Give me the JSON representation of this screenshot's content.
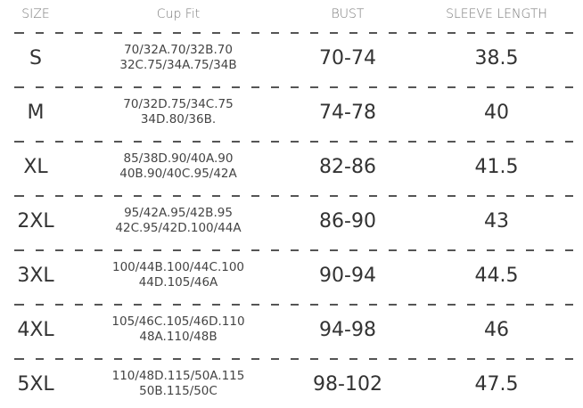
{
  "headers": [
    "SIZE",
    "Cup Fit",
    "BUST",
    "SLEEVE LENGTH"
  ],
  "rows": [
    {
      "size": "S",
      "cup": [
        "70/32A.70/32B.70",
        "32C.75/34A.75/34B"
      ],
      "bust": "70-74",
      "sleeve": "38.5"
    },
    {
      "size": "M",
      "cup": [
        "70/32D.75/34C.75",
        "34D.80/36B."
      ],
      "bust": "74-78",
      "sleeve": "40"
    },
    {
      "size": "XL",
      "cup": [
        "85/38D.90/40A.90",
        "40B.90/40C.95/42A"
      ],
      "bust": "82-86",
      "sleeve": "41.5"
    },
    {
      "size": "2XL",
      "cup": [
        "95/42A.95/42B.95",
        "42C.95/42D.100/44A"
      ],
      "bust": "86-90",
      "sleeve": "43"
    },
    {
      "size": "3XL",
      "cup": [
        "100/44B.100/44C.100",
        "44D.105/46A"
      ],
      "bust": "90-94",
      "sleeve": "44.5"
    },
    {
      "size": "4XL",
      "cup": [
        "105/46C.105/46D.110",
        "48A.110/48B"
      ],
      "bust": "94-98",
      "sleeve": "46"
    },
    {
      "size": "5XL",
      "cup": [
        "110/48D.115/50A.115",
        "50B.115/50C"
      ],
      "bust": "98-102",
      "sleeve": "47.5"
    }
  ]
}
